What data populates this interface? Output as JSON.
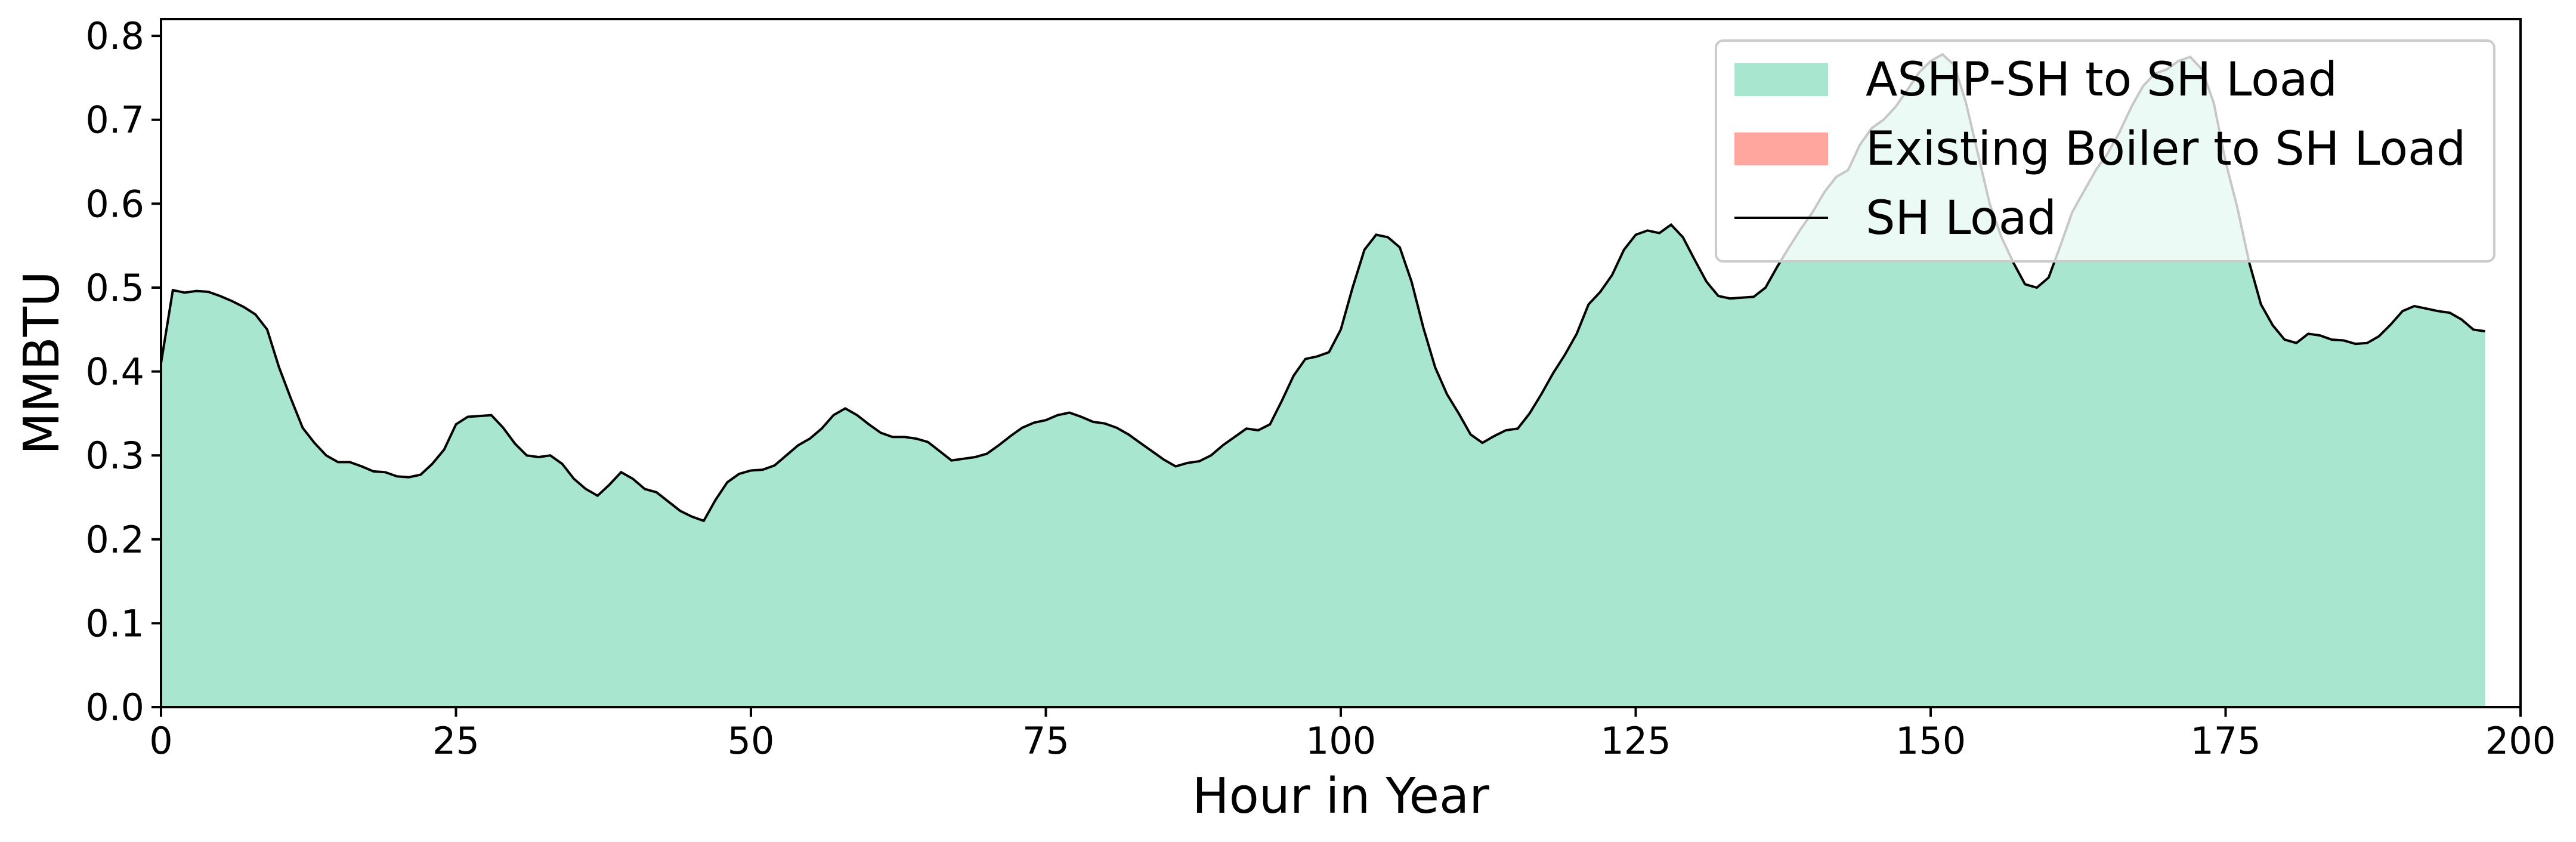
{
  "chart_data": {
    "type": "area",
    "title": "",
    "xlabel": "Hour in Year",
    "ylabel": "MMBTU",
    "xlim": [
      0,
      200
    ],
    "ylim": [
      0,
      0.82
    ],
    "xticks": [
      0,
      25,
      50,
      75,
      100,
      125,
      150,
      175,
      200
    ],
    "yticks": [
      0.0,
      0.1,
      0.2,
      0.3,
      0.4,
      0.5,
      0.6,
      0.7,
      0.8
    ],
    "grid": false,
    "legend_position": "top-right",
    "x_start": 0,
    "x_step": 1,
    "series": [
      {
        "name": "ASHP-SH to SH Load",
        "kind": "area",
        "color": "#a8e6cf",
        "values": [
          0.41,
          0.497,
          0.494,
          0.496,
          0.495,
          0.49,
          0.484,
          0.477,
          0.468,
          0.45,
          0.405,
          0.368,
          0.333,
          0.315,
          0.3,
          0.292,
          0.292,
          0.287,
          0.281,
          0.28,
          0.275,
          0.274,
          0.277,
          0.29,
          0.307,
          0.337,
          0.346,
          0.347,
          0.348,
          0.333,
          0.314,
          0.3,
          0.298,
          0.3,
          0.29,
          0.272,
          0.26,
          0.252,
          0.265,
          0.28,
          0.272,
          0.26,
          0.256,
          0.245,
          0.234,
          0.227,
          0.222,
          0.247,
          0.268,
          0.278,
          0.282,
          0.283,
          0.288,
          0.3,
          0.312,
          0.32,
          0.332,
          0.348,
          0.356,
          0.348,
          0.337,
          0.327,
          0.322,
          0.322,
          0.32,
          0.316,
          0.305,
          0.294,
          0.296,
          0.298,
          0.302,
          0.312,
          0.323,
          0.333,
          0.339,
          0.342,
          0.348,
          0.351,
          0.346,
          0.34,
          0.338,
          0.333,
          0.325,
          0.315,
          0.305,
          0.295,
          0.287,
          0.291,
          0.293,
          0.3,
          0.312,
          0.322,
          0.332,
          0.33,
          0.337,
          0.365,
          0.395,
          0.415,
          0.418,
          0.423,
          0.45,
          0.5,
          0.545,
          0.563,
          0.56,
          0.548,
          0.507,
          0.452,
          0.405,
          0.373,
          0.35,
          0.325,
          0.315,
          0.323,
          0.33,
          0.332,
          0.35,
          0.373,
          0.398,
          0.42,
          0.445,
          0.48,
          0.495,
          0.515,
          0.545,
          0.563,
          0.568,
          0.565,
          0.575,
          0.56,
          0.533,
          0.507,
          0.49,
          0.487,
          0.488,
          0.489,
          0.5,
          0.525,
          0.548,
          0.57,
          0.59,
          0.614,
          0.632,
          0.64,
          0.67,
          0.69,
          0.7,
          0.715,
          0.735,
          0.756,
          0.77,
          0.778,
          0.765,
          0.72,
          0.66,
          0.6,
          0.56,
          0.53,
          0.504,
          0.5,
          0.512,
          0.55,
          0.59,
          0.615,
          0.64,
          0.66,
          0.685,
          0.715,
          0.74,
          0.755,
          0.76,
          0.77,
          0.775,
          0.76,
          0.72,
          0.65,
          0.595,
          0.53,
          0.48,
          0.455,
          0.438,
          0.434,
          0.445,
          0.443,
          0.438,
          0.437,
          0.433,
          0.434,
          0.442,
          0.456,
          0.472,
          0.478,
          0.475,
          0.472,
          0.47,
          0.462,
          0.45,
          0.448
        ]
      },
      {
        "name": "Existing Boiler to SH Load",
        "kind": "area",
        "color": "#ffa69e",
        "values": []
      },
      {
        "name": "SH Load",
        "kind": "line",
        "color": "#000000"
      }
    ]
  }
}
